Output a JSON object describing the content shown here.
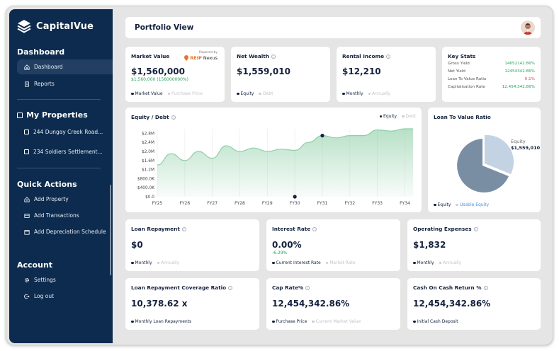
{
  "app": {
    "name": "CapitalVue"
  },
  "sidebar": {
    "sections": {
      "dashboard": "Dashboard",
      "properties": "My Properties",
      "quick_actions": "Quick Actions",
      "account": "Account"
    },
    "dashboard_items": [
      "Dashboard",
      "Reports"
    ],
    "properties": [
      "244 Dungay Creek Road...",
      "234 Soldiers Settlement..."
    ],
    "quick_actions": [
      "Add Property",
      "Add Transactions",
      "Add Depreciation Schedule"
    ],
    "account_items": [
      "Settings",
      "Log out"
    ]
  },
  "header": {
    "title": "Portfolio View"
  },
  "cards": {
    "market_value": {
      "title": "Market Value",
      "value": "$1,560,000",
      "sub": "$1,560,000 (156000000%)",
      "legend": [
        "Market Value",
        "Purchase Price"
      ],
      "powered_by": "Powered by",
      "brand": "REIP",
      "brand2": "Nexus"
    },
    "net_wealth": {
      "title": "Net Wealth",
      "value": "$1,559,010",
      "legend": [
        "Equity",
        "Debt"
      ]
    },
    "rental_income": {
      "title": "Rental Income",
      "value": "$12,210",
      "legend": [
        "Monthly",
        "Annually"
      ]
    },
    "key_stats": {
      "title": "Key Stats",
      "rows": [
        {
          "label": "Gross Yield",
          "value": "14652142.86%"
        },
        {
          "label": "Net Yield",
          "value": "12454342.86%"
        },
        {
          "label": "Loan To Value Ratio",
          "value": "0.1%"
        },
        {
          "label": "Capitalisation Rate",
          "value": "12,454,342.86%"
        }
      ]
    },
    "loan_repayment": {
      "title": "Loan Repayment",
      "value": "$0",
      "legend": [
        "Monthly",
        "Annually"
      ]
    },
    "interest_rate": {
      "title": "Interest Rate",
      "value": "0.00%",
      "sub": "-6.29%",
      "legend": [
        "Current Interest Rate",
        "Market Rate"
      ]
    },
    "operating_expenses": {
      "title": "Operating Expenses",
      "value": "$1,832",
      "legend": [
        "Monthly",
        "Annually"
      ]
    },
    "lrcr": {
      "title": "Loan Repayment Coverage Ratio",
      "value": "10,378.62 x",
      "legend": [
        "Monthly Loan Repayments"
      ]
    },
    "cap_rate": {
      "title": "Cap Rate%",
      "value": "12,454,342.86%",
      "legend": [
        "Purchase Price",
        "Current Market Value"
      ]
    },
    "coc": {
      "title": "Cash On Cash Return %",
      "value": "12,454,342.86%",
      "legend": [
        "Initial Cash Deposit"
      ]
    }
  },
  "ltv": {
    "title": "Loan To Value Ratio",
    "label": "Equity",
    "value": "$1,559,010",
    "legend": [
      "Equity",
      "Usable Equity"
    ]
  },
  "colors": {
    "sidebar": "#0d2b4e",
    "green": "#22a35b",
    "area": "#7cc79a",
    "pie_dark": "#7a8ea3",
    "pie_light": "#c3d3e3"
  },
  "chart_data": {
    "type": "area",
    "title": "Equity / Debt",
    "legend": [
      "Equity",
      "Debt"
    ],
    "categories": [
      "FY25",
      "FY26",
      "FY27",
      "FY28",
      "FY29",
      "FY30",
      "FY31",
      "FY32",
      "FY33",
      "FY34"
    ],
    "ytick_labels": [
      "$0.0",
      "$400.0K",
      "$800.0K",
      "$1.2M",
      "$1.6M",
      "$2.0M",
      "$2.4M",
      "$2.8M"
    ],
    "ylim": [
      0,
      3000000
    ],
    "series": [
      {
        "name": "Equity",
        "x": [
          0,
          0.5,
          1,
          1.5,
          2,
          2.5,
          3,
          3.5,
          4,
          4.5,
          5,
          5.5,
          6,
          6.5,
          7,
          7.5,
          8,
          8.5,
          9,
          9.3
        ],
        "values": [
          1400000,
          1900000,
          1600000,
          2000000,
          1700000,
          2250000,
          2000000,
          2150000,
          2000000,
          2100000,
          2050000,
          2400000,
          2700000,
          2600000,
          2700000,
          2700000,
          2950000,
          2900000,
          3000000,
          3000000
        ]
      },
      {
        "name": "Debt",
        "x": [
          5,
          6
        ],
        "values": [
          0,
          2700000
        ]
      }
    ],
    "grid": true
  }
}
